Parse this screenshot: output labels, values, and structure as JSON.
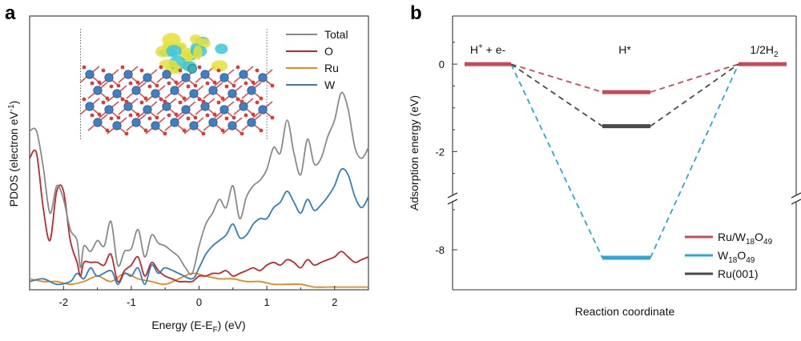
{
  "chart_data": [
    {
      "panel": "a",
      "type": "line",
      "xlabel": "Energy (E-E",
      "xlabel_sub": "F",
      "xlabel_tail": ") (eV)",
      "ylabel": "PDOS (electron eV",
      "ylabel_sup": "-1",
      "ylabel_tail": ")",
      "xlim": [
        -2.5,
        2.5
      ],
      "ylim": [
        0,
        1
      ],
      "xticks": [
        -2,
        -1,
        0,
        1,
        2
      ],
      "xtick_labels": [
        "-2",
        "-1",
        "0",
        "1",
        "2"
      ],
      "fermi_markers": [
        -1.75,
        1.0
      ],
      "legend": {
        "placement": "top-right",
        "entries": [
          "Total",
          "O",
          "Ru",
          "W"
        ]
      },
      "inset": "crystal structure with charge density isosurface",
      "series": [
        {
          "name": "Total",
          "color": "#8a8a8a",
          "x": [
            -2.5,
            -2.4,
            -2.3,
            -2.2,
            -2.1,
            -2.0,
            -1.9,
            -1.8,
            -1.75,
            -1.7,
            -1.6,
            -1.5,
            -1.4,
            -1.3,
            -1.2,
            -1.1,
            -1.0,
            -0.9,
            -0.8,
            -0.7,
            -0.6,
            -0.5,
            -0.4,
            -0.3,
            -0.2,
            -0.1,
            0.0,
            0.1,
            0.2,
            0.3,
            0.4,
            0.5,
            0.6,
            0.7,
            0.8,
            0.9,
            1.0,
            1.1,
            1.2,
            1.3,
            1.4,
            1.5,
            1.6,
            1.7,
            1.8,
            1.9,
            2.0,
            2.1,
            2.2,
            2.3,
            2.4,
            2.5
          ],
          "y": [
            0.58,
            0.58,
            0.45,
            0.28,
            0.38,
            0.33,
            0.22,
            0.18,
            0.08,
            0.16,
            0.14,
            0.18,
            0.16,
            0.25,
            0.09,
            0.14,
            0.15,
            0.22,
            0.12,
            0.2,
            0.17,
            0.16,
            0.14,
            0.12,
            0.08,
            0.06,
            0.16,
            0.24,
            0.28,
            0.33,
            0.3,
            0.38,
            0.26,
            0.34,
            0.38,
            0.4,
            0.44,
            0.52,
            0.5,
            0.62,
            0.5,
            0.42,
            0.55,
            0.46,
            0.48,
            0.56,
            0.62,
            0.72,
            0.66,
            0.52,
            0.48,
            0.52
          ]
        },
        {
          "name": "O",
          "color": "#c0282e",
          "x": [
            -2.5,
            -2.4,
            -2.3,
            -2.2,
            -2.1,
            -2.0,
            -1.9,
            -1.8,
            -1.75,
            -1.7,
            -1.6,
            -1.5,
            -1.4,
            -1.3,
            -1.2,
            -1.1,
            -1.0,
            -0.9,
            -0.8,
            -0.7,
            -0.6,
            -0.5,
            -0.4,
            -0.3,
            -0.2,
            -0.1,
            0.0,
            0.1,
            0.2,
            0.3,
            0.4,
            0.5,
            0.6,
            0.7,
            0.8,
            0.9,
            1.0,
            1.1,
            1.2,
            1.3,
            1.4,
            1.5,
            1.6,
            1.7,
            1.8,
            1.9,
            2.0,
            2.1,
            2.2,
            2.3,
            2.4,
            2.5
          ],
          "y": [
            0.48,
            0.5,
            0.3,
            0.18,
            0.36,
            0.36,
            0.18,
            0.1,
            0.05,
            0.1,
            0.1,
            0.1,
            0.09,
            0.13,
            0.03,
            0.07,
            0.09,
            0.12,
            0.05,
            0.1,
            0.07,
            0.05,
            0.04,
            0.03,
            0.03,
            0.03,
            0.05,
            0.05,
            0.06,
            0.06,
            0.07,
            0.05,
            0.06,
            0.07,
            0.08,
            0.07,
            0.09,
            0.1,
            0.09,
            0.11,
            0.1,
            0.08,
            0.11,
            0.09,
            0.1,
            0.11,
            0.12,
            0.14,
            0.12,
            0.1,
            0.11,
            0.12
          ]
        },
        {
          "name": "Ru",
          "color": "#e8861e",
          "x": [
            -2.5,
            -2.3,
            -2.1,
            -1.9,
            -1.7,
            -1.5,
            -1.3,
            -1.1,
            -0.9,
            -0.7,
            -0.5,
            -0.3,
            -0.1,
            0.1,
            0.3,
            0.5,
            0.7,
            0.9,
            1.1,
            1.3,
            1.5,
            1.7,
            1.9,
            2.1,
            2.3,
            2.5
          ],
          "y": [
            0.04,
            0.03,
            0.03,
            0.02,
            0.03,
            0.05,
            0.03,
            0.06,
            0.04,
            0.03,
            0.02,
            0.04,
            0.06,
            0.05,
            0.04,
            0.04,
            0.03,
            0.03,
            0.02,
            0.02,
            0.02,
            0.01,
            0.01,
            0.01,
            0.01,
            0.01
          ]
        },
        {
          "name": "W",
          "color": "#2f7fbf",
          "x": [
            -2.5,
            -2.3,
            -2.1,
            -1.9,
            -1.8,
            -1.7,
            -1.6,
            -1.5,
            -1.3,
            -1.2,
            -1.1,
            -1.0,
            -0.9,
            -0.8,
            -0.7,
            -0.6,
            -0.5,
            -0.3,
            -0.1,
            0.0,
            0.1,
            0.2,
            0.3,
            0.4,
            0.5,
            0.6,
            0.7,
            0.8,
            0.9,
            1.0,
            1.1,
            1.2,
            1.3,
            1.4,
            1.5,
            1.6,
            1.7,
            1.8,
            1.9,
            2.0,
            2.1,
            2.2,
            2.3,
            2.4,
            2.5
          ],
          "y": [
            0.03,
            0.04,
            0.02,
            0.03,
            0.06,
            0.04,
            0.08,
            0.05,
            0.07,
            0.02,
            0.06,
            0.05,
            0.08,
            0.02,
            0.09,
            0.06,
            0.08,
            0.06,
            0.04,
            0.08,
            0.13,
            0.16,
            0.18,
            0.2,
            0.24,
            0.19,
            0.2,
            0.24,
            0.26,
            0.26,
            0.3,
            0.32,
            0.36,
            0.32,
            0.28,
            0.33,
            0.29,
            0.31,
            0.34,
            0.38,
            0.44,
            0.42,
            0.34,
            0.3,
            0.34
          ]
        }
      ]
    },
    {
      "panel": "b",
      "type": "line",
      "ylabel": "Adsorption energy (eV)",
      "xlabel": "Reaction coordinate",
      "y_ticks_upper": [
        0,
        -2
      ],
      "y_tick_labels_upper": [
        "0",
        "-2"
      ],
      "y_ticks_lower": [
        -8
      ],
      "y_tick_labels_lower": [
        "-8"
      ],
      "ylim_upper": [
        -3.0,
        1.1
      ],
      "ylim_lower": [
        -9.0,
        -6.8
      ],
      "axis_break": true,
      "states": [
        "H⁺ + e-",
        "H*",
        "1/2H₂"
      ],
      "state_label_initial": {
        "main": "H",
        "sup": "+",
        "tail": " + e-"
      },
      "state_label_middle": "H*",
      "state_label_final": {
        "main": "1/2H",
        "sub": "2"
      },
      "legend": {
        "placement": "bottom-right"
      },
      "series": [
        {
          "name": "Ru/W18O49",
          "name_main": "Ru/W",
          "name_sub1": "18",
          "name_mid": "O",
          "name_sub2": "49",
          "color": "#c64b56",
          "values": [
            0,
            -0.64,
            0
          ]
        },
        {
          "name": "W18O49",
          "name_main": "W",
          "name_sub1": "18",
          "name_mid": "O",
          "name_sub2": "49",
          "color": "#2aa7d4",
          "values": [
            0,
            -8.2,
            0
          ]
        },
        {
          "name": "Ru(001)",
          "name_main": "Ru(001)",
          "color": "#4a4a4a",
          "values": [
            0,
            -1.42,
            0
          ]
        }
      ]
    }
  ],
  "panel_labels": {
    "a": "a",
    "b": "b"
  }
}
